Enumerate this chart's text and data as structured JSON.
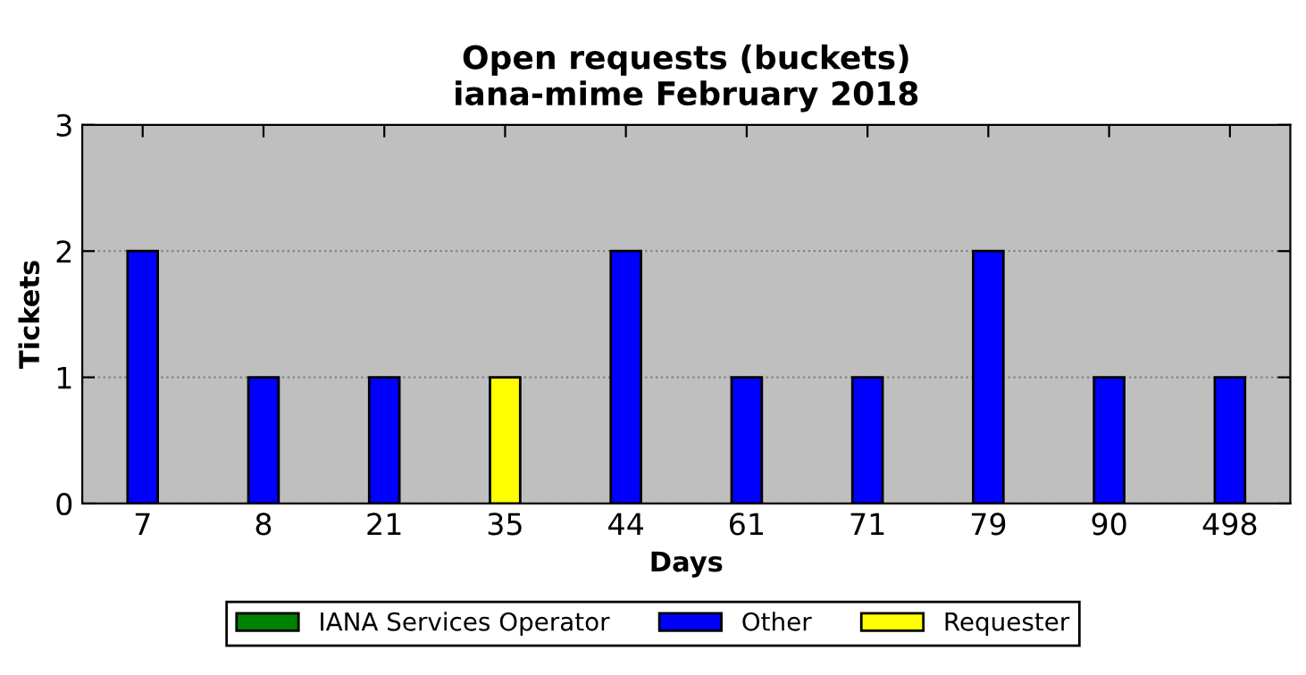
{
  "chart_data": {
    "type": "bar",
    "title": "Open requests (buckets)\niana-mime February 2018",
    "xlabel": "Days",
    "ylabel": "Tickets",
    "categories": [
      "7",
      "8",
      "21",
      "35",
      "44",
      "61",
      "71",
      "79",
      "90",
      "498"
    ],
    "stacked": true,
    "series": [
      {
        "name": "IANA Services Operator",
        "color": "#008000",
        "values": [
          0,
          0,
          0,
          0,
          0,
          0,
          0,
          0,
          0,
          0
        ]
      },
      {
        "name": "Other",
        "color": "#0000ff",
        "values": [
          2,
          1,
          1,
          0,
          2,
          1,
          1,
          2,
          1,
          1
        ]
      },
      {
        "name": "Requester",
        "color": "#ffff00",
        "values": [
          0,
          0,
          0,
          1,
          0,
          0,
          0,
          0,
          0,
          0
        ]
      }
    ],
    "ylim": [
      0,
      3
    ],
    "yticks": [
      0,
      1,
      2,
      3
    ],
    "grid": "y",
    "legend": "bottom"
  }
}
